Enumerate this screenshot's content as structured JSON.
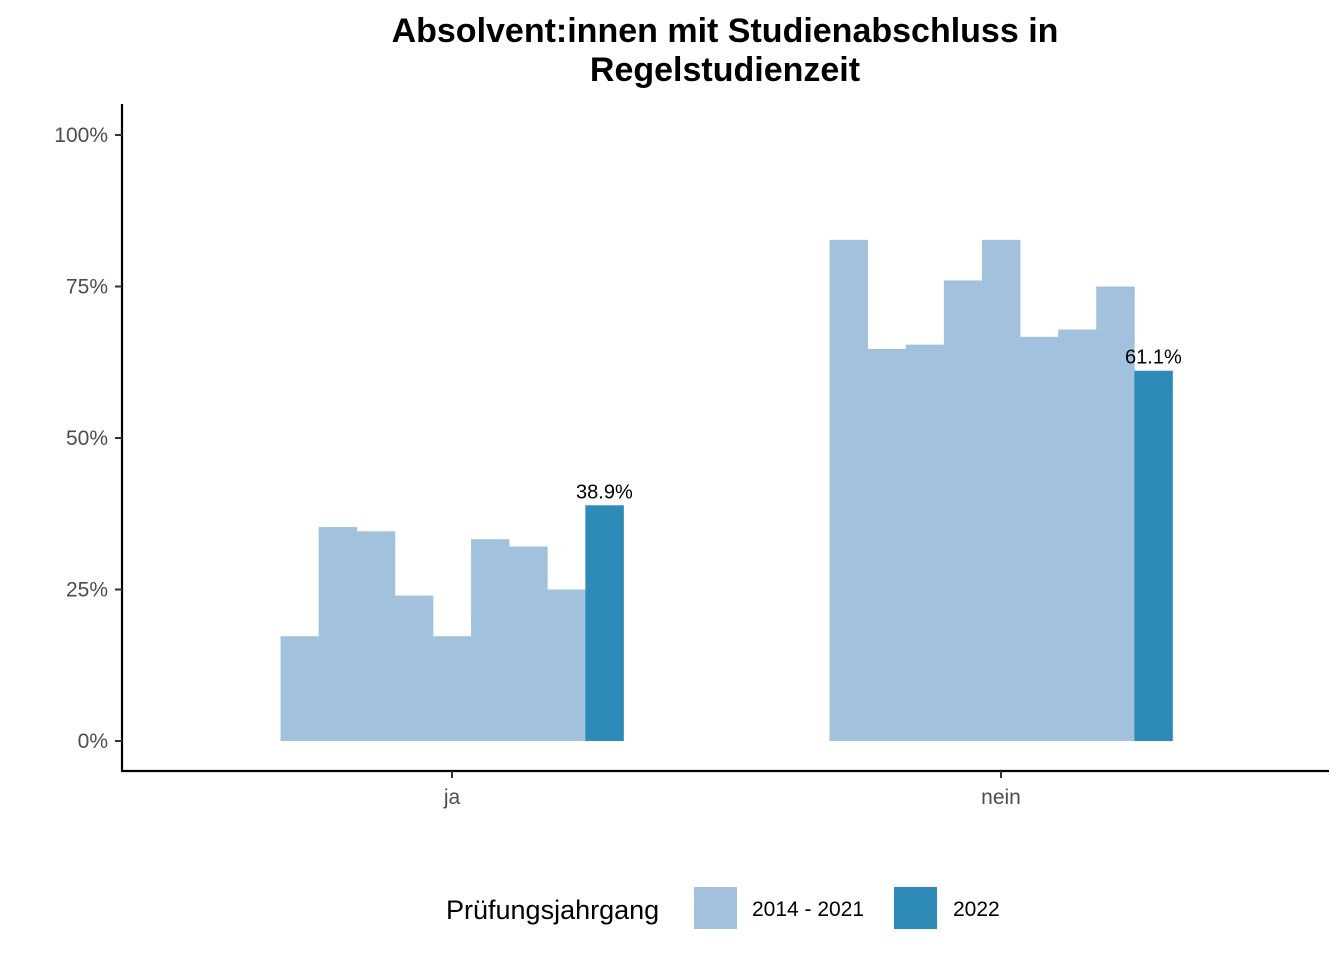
{
  "chart_data": {
    "type": "bar",
    "title": [
      "Absolvent:innen mit Studienabschluss in",
      "Regelstudienzeit"
    ],
    "xlabel": "",
    "ylabel": "",
    "categories": [
      "ja",
      "nein"
    ],
    "ylim": [
      0,
      1.0
    ],
    "yticks": [
      0,
      0.25,
      0.5,
      0.75,
      1.0
    ],
    "ytick_labels": [
      "0%",
      "25%",
      "50%",
      "75%",
      "100%"
    ],
    "groups": [
      {
        "category": "ja",
        "values_2014_2021": [
          0.173,
          0.353,
          0.346,
          0.24,
          0.173,
          0.333,
          0.321,
          0.25
        ],
        "value_2022": 0.389,
        "label_2022": "38.9%"
      },
      {
        "category": "nein",
        "values_2014_2021": [
          0.827,
          0.647,
          0.654,
          0.76,
          0.827,
          0.667,
          0.679,
          0.75
        ],
        "value_2022": 0.611,
        "label_2022": "61.1%"
      }
    ],
    "legend": {
      "title": "Prüfungsjahrgang",
      "position": "bottom",
      "entries": [
        {
          "label": "2014 - 2021",
          "color": "#a2c1dc"
        },
        {
          "label": "2022",
          "color": "#2e8bb7"
        }
      ]
    },
    "grid": false
  }
}
